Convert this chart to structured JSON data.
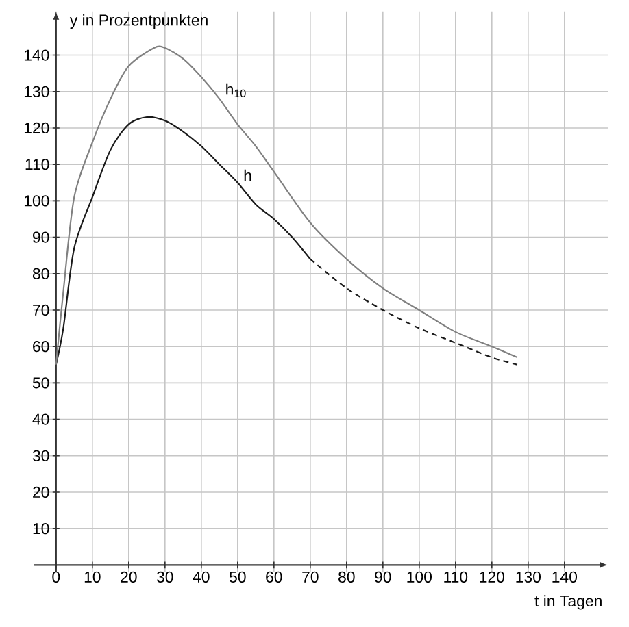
{
  "chart_data": {
    "type": "line",
    "xlabel": "t in Tagen",
    "ylabel": "y in Prozentpunkten",
    "xlim": [
      -6,
      152
    ],
    "ylim": [
      -2,
      152
    ],
    "xticks": [
      0,
      10,
      20,
      30,
      40,
      50,
      60,
      70,
      80,
      90,
      100,
      110,
      120,
      130,
      140
    ],
    "yticks": [
      10,
      20,
      30,
      40,
      50,
      60,
      70,
      80,
      90,
      100,
      110,
      120,
      130,
      140
    ],
    "grid": true,
    "legend": false,
    "marker": "none",
    "series": [
      {
        "name": "h",
        "color": "#1a1a1a",
        "line_style": "solid",
        "x": [
          0,
          2,
          5,
          10,
          15,
          20,
          25,
          30,
          35,
          40,
          45,
          50,
          55,
          60,
          65,
          70
        ],
        "values": [
          55,
          65,
          87,
          101,
          114,
          121,
          123,
          122,
          119,
          115,
          110,
          105,
          99,
          95,
          90,
          84
        ]
      },
      {
        "color": "#1a1a1a",
        "line_style": "dashed",
        "x": [
          70,
          80,
          90,
          100,
          110,
          120,
          127
        ],
        "values": [
          84,
          76,
          70,
          65,
          61,
          57,
          55
        ]
      },
      {
        "name": "h$_{10}$",
        "color": "#808080",
        "line_style": "solid",
        "x": [
          0,
          2,
          5,
          10,
          15,
          20,
          27,
          30,
          35,
          40,
          45,
          50,
          55,
          60,
          70,
          80,
          90,
          100,
          110,
          120,
          127
        ],
        "values": [
          55,
          75,
          101,
          116,
          128,
          137,
          142,
          142,
          139,
          134,
          128,
          121,
          115,
          108,
          94,
          84,
          76,
          70,
          64,
          60,
          57
        ]
      }
    ]
  }
}
